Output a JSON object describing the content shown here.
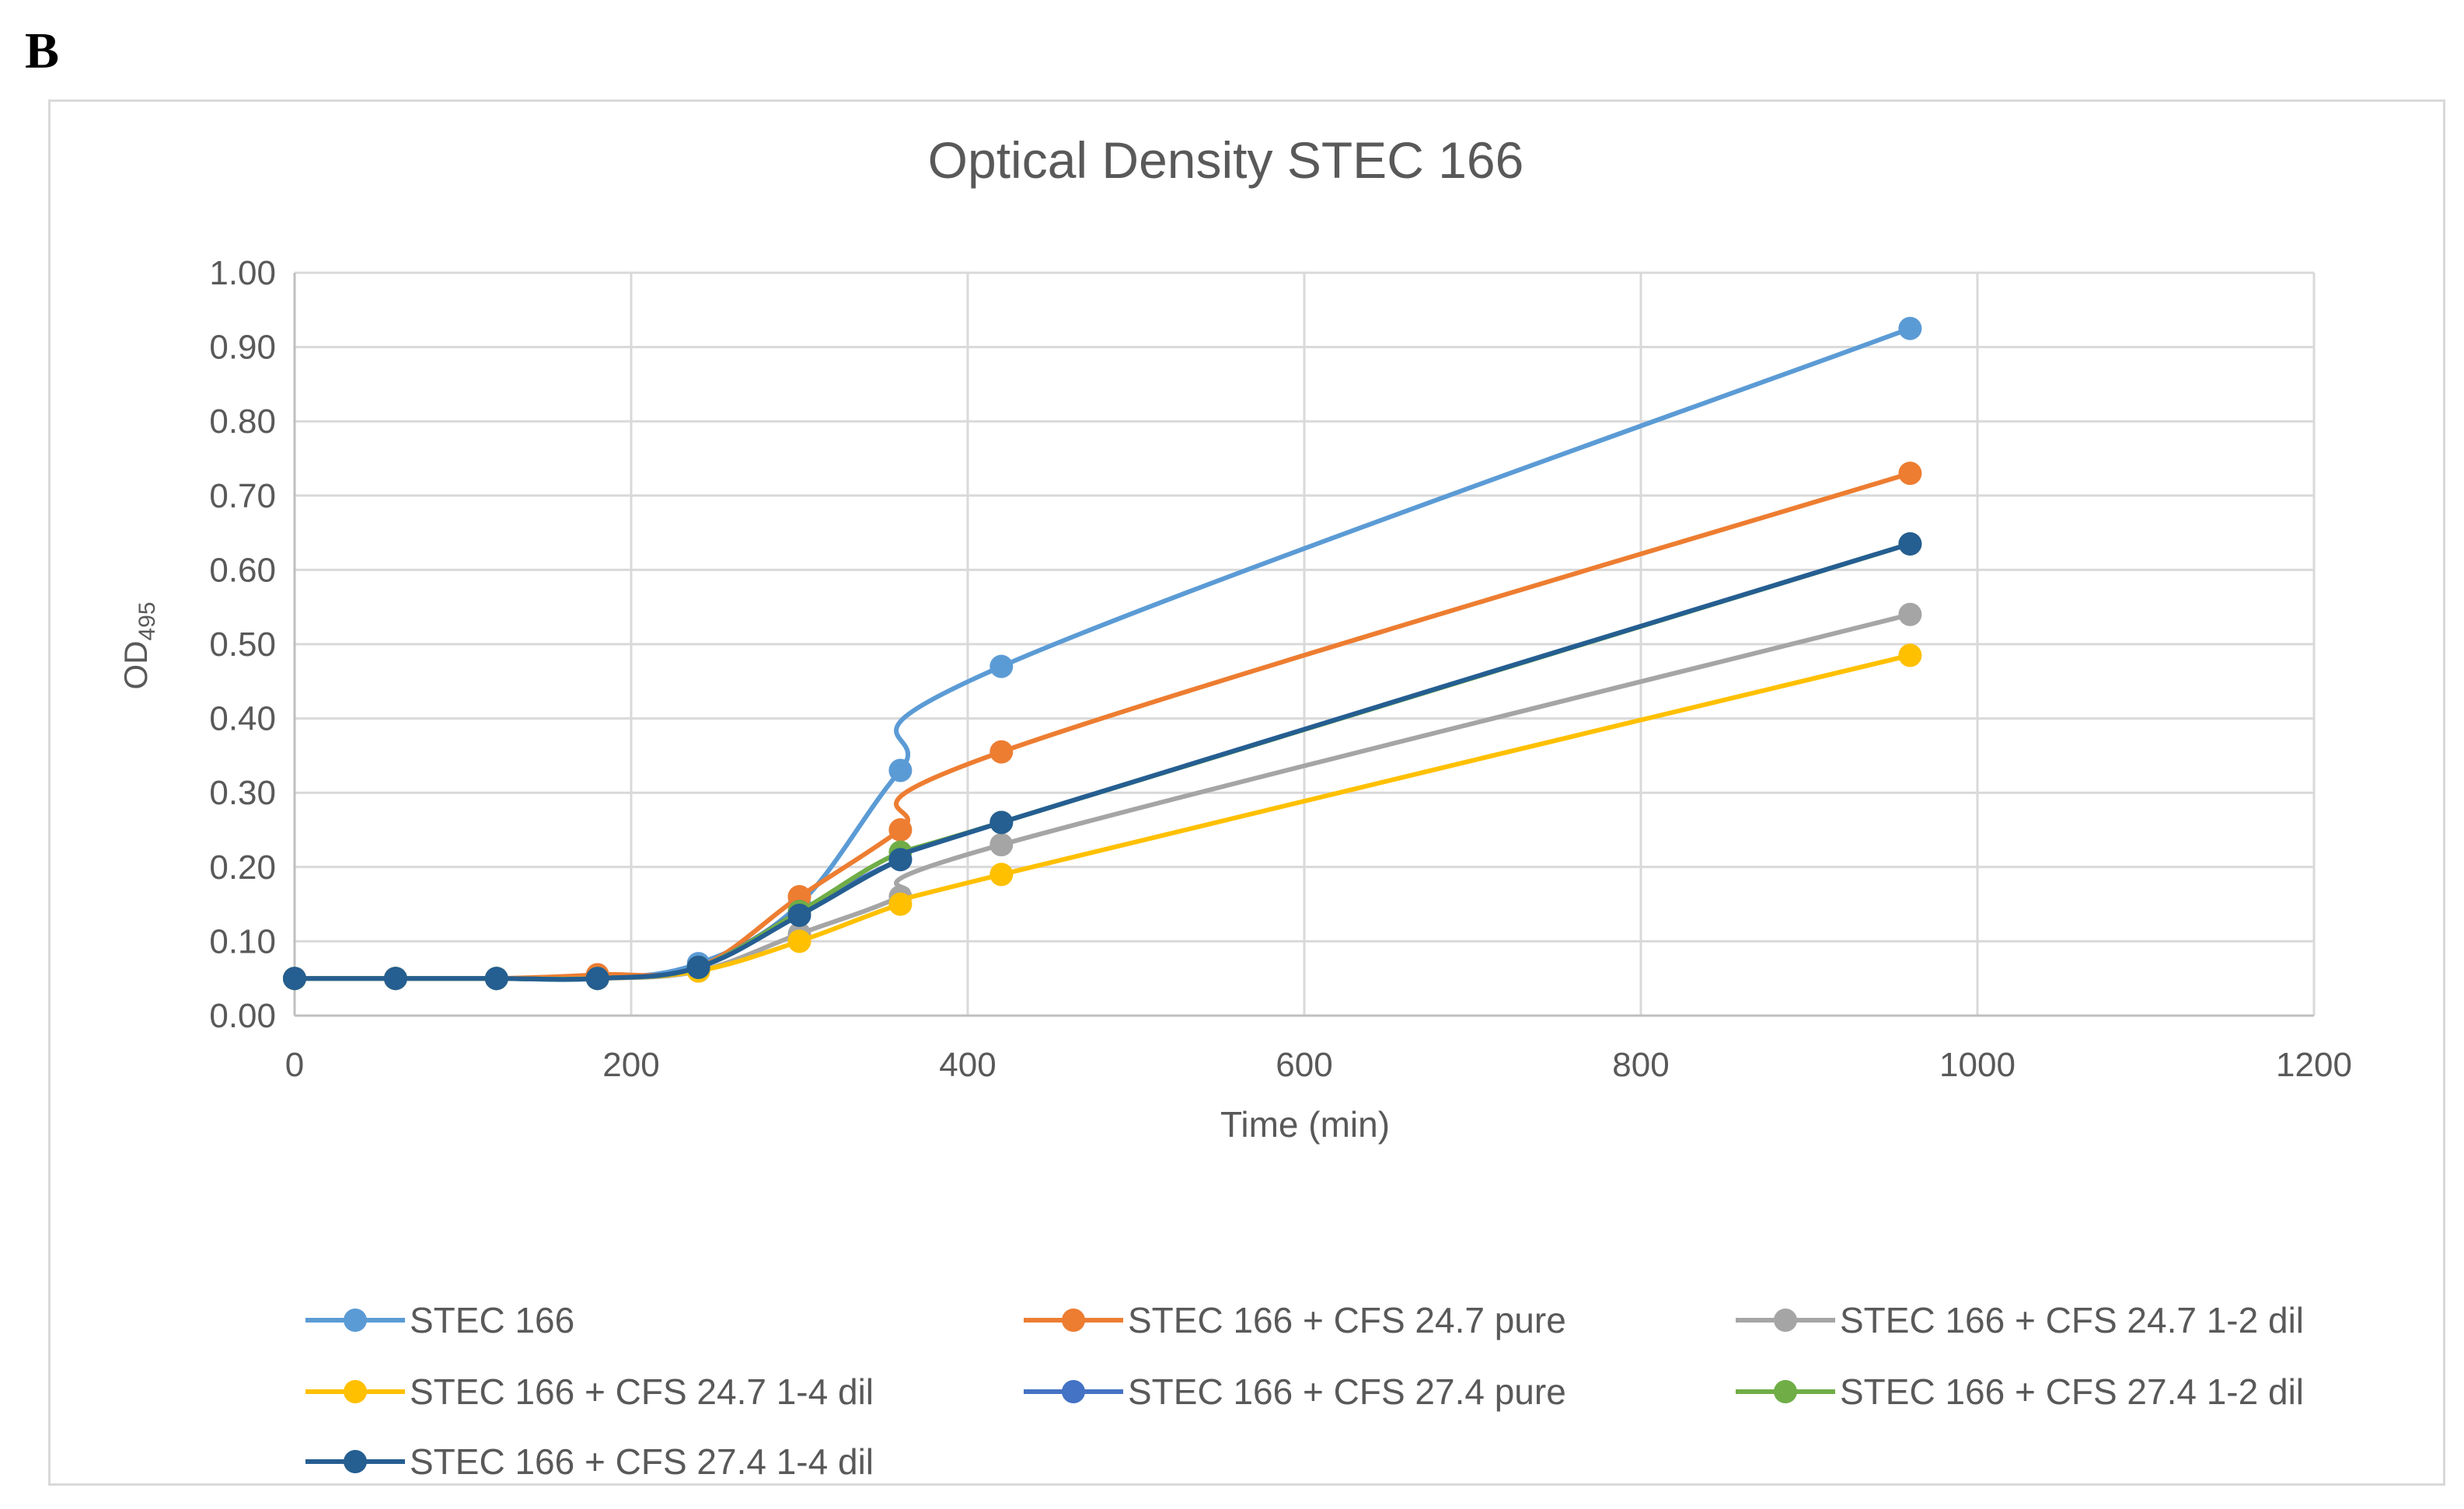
{
  "panel_label": "B",
  "chart_data": {
    "type": "line",
    "title": "Optical Density STEC 166",
    "xlabel": "Time (min)",
    "ylabel": "OD",
    "ylabel_subscript": "495",
    "xlim": [
      0,
      1200
    ],
    "ylim": [
      0,
      1.0
    ],
    "xticks": [
      0,
      200,
      400,
      600,
      800,
      1000,
      1200
    ],
    "xtick_labels": [
      "0",
      "200",
      "400",
      "600",
      "800",
      "1000",
      "1200"
    ],
    "yticks": [
      0,
      0.1,
      0.2,
      0.3,
      0.4,
      0.5,
      0.6,
      0.7,
      0.8,
      0.9,
      1.0
    ],
    "ytick_labels": [
      "0.00",
      "0.10",
      "0.20",
      "0.30",
      "0.40",
      "0.50",
      "0.60",
      "0.70",
      "0.80",
      "0.90",
      "1.00"
    ],
    "grid": true,
    "legend_position": "bottom",
    "x": [
      0,
      60,
      120,
      180,
      240,
      300,
      360,
      420,
      960
    ],
    "series": [
      {
        "name": "STEC 166",
        "color": "#5b9bd5",
        "values": [
          0.05,
          0.05,
          0.05,
          0.05,
          0.07,
          0.15,
          0.33,
          0.47,
          0.925
        ]
      },
      {
        "name": "STEC 166 + CFS 24.7 pure",
        "color": "#ed7d31",
        "values": [
          0.05,
          0.05,
          0.05,
          0.055,
          0.065,
          0.16,
          0.25,
          0.355,
          0.73
        ]
      },
      {
        "name": "STEC 166 + CFS 24.7 1-2 dil",
        "color": "#a5a5a5",
        "values": [
          0.05,
          0.05,
          0.05,
          0.05,
          0.06,
          0.11,
          0.16,
          0.23,
          0.54
        ]
      },
      {
        "name": "STEC 166 + CFS 24.7 1-4 dil",
        "color": "#ffc000",
        "values": [
          0.05,
          0.05,
          0.05,
          0.05,
          0.06,
          0.1,
          0.15,
          0.19,
          0.485
        ]
      },
      {
        "name": "STEC 166 + CFS 27.4 pure",
        "color": "#4472c4",
        "values": [
          0.05,
          0.05,
          0.05,
          0.05,
          0.065,
          0.14,
          0.21,
          0.26,
          0.635
        ]
      },
      {
        "name": "STEC 166 + CFS 27.4 1-2 dil",
        "color": "#70ad47",
        "values": [
          0.05,
          0.05,
          0.05,
          0.05,
          0.065,
          0.14,
          0.22,
          0.26,
          0.635
        ]
      },
      {
        "name": "STEC 166 + CFS 27.4 1-4 dil",
        "color": "#255e91",
        "values": [
          0.05,
          0.05,
          0.05,
          0.05,
          0.065,
          0.135,
          0.21,
          0.26,
          0.635
        ]
      }
    ]
  }
}
